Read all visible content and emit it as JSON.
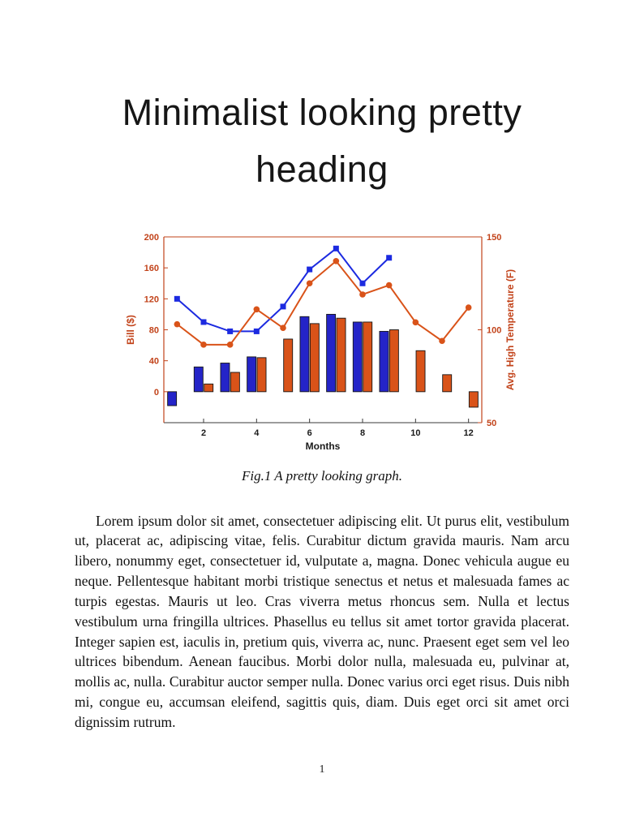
{
  "heading": {
    "title": "Minimalist looking pretty heading"
  },
  "figure": {
    "caption": "Fig.1 A pretty looking graph."
  },
  "body": {
    "paragraph": "Lorem ipsum dolor sit amet, consectetuer adipiscing elit. Ut purus elit, vestibulum ut, placerat ac, adipiscing vitae, felis. Curabitur dictum gravida mauris. Nam arcu libero, nonummy eget, consectetuer id, vulputate a, magna. Donec vehicula augue eu neque. Pellentesque habitant morbi tristique senectus et netus et malesuada fames ac turpis egestas. Mauris ut leo. Cras viverra metus rhoncus sem. Nulla et lectus vestibulum urna fringilla ultrices. Phasellus eu tellus sit amet tortor gravida placerat. Integer sapien est, iaculis in, pretium quis, viverra ac, nunc. Praesent eget sem vel leo ultrices bibendum. Aenean faucibus. Morbi dolor nulla, malesuada eu, pulvinar at, mollis ac, nulla. Curabitur auctor semper nulla. Donec varius orci eget risus. Duis nibh mi, congue eu, accumsan eleifend, sagittis quis, diam. Duis eget orci sit amet orci dignissim rutrum."
  },
  "page": {
    "number": "1"
  },
  "chart_data": {
    "type": "bar",
    "subtype": "grouped bars with two overlaid lines, dual y-axes",
    "title": "",
    "xlabel": "Months",
    "ylabel_left": "Bill ($)",
    "ylabel_right": "Avg. High Temperature (F)",
    "x": [
      1,
      2,
      3,
      4,
      5,
      6,
      7,
      8,
      9,
      10,
      11,
      12
    ],
    "x_ticks": [
      2,
      4,
      6,
      8,
      10,
      12
    ],
    "left_axis": {
      "range": [
        -40,
        200
      ],
      "ticks": [
        0,
        40,
        80,
        120,
        160,
        200
      ]
    },
    "right_axis": {
      "range": [
        50,
        150
      ],
      "ticks": [
        50,
        100,
        150
      ]
    },
    "grid": false,
    "legend": "none",
    "series": [
      {
        "name": "bill-bars-blue",
        "type": "bar",
        "axis": "left",
        "color": "#2424c8",
        "values": [
          -18,
          32,
          37,
          45,
          null,
          97,
          100,
          90,
          78,
          null,
          null,
          null
        ]
      },
      {
        "name": "bill-bars-orange",
        "type": "bar",
        "axis": "left",
        "color": "#d95319",
        "values": [
          null,
          10,
          25,
          44,
          68,
          88,
          95,
          90,
          80,
          53,
          22,
          -20
        ]
      },
      {
        "name": "bill-line-blue",
        "type": "line",
        "axis": "left",
        "color": "#1c2ae0",
        "marker": "square",
        "values": [
          120,
          90,
          78,
          78,
          110,
          158,
          185,
          140,
          173,
          null,
          null,
          null
        ]
      },
      {
        "name": "temp-line-orange",
        "type": "line",
        "axis": "right",
        "color": "#d95319",
        "marker": "circle",
        "values": [
          103,
          92,
          92,
          111,
          101,
          125,
          137,
          119,
          124,
          104,
          94,
          112
        ]
      }
    ],
    "colors": {
      "axis_left": "#c2431a",
      "axis_right": "#c2431a",
      "axis_x": "#3a3a3a",
      "bar_edge": "#161616"
    }
  }
}
